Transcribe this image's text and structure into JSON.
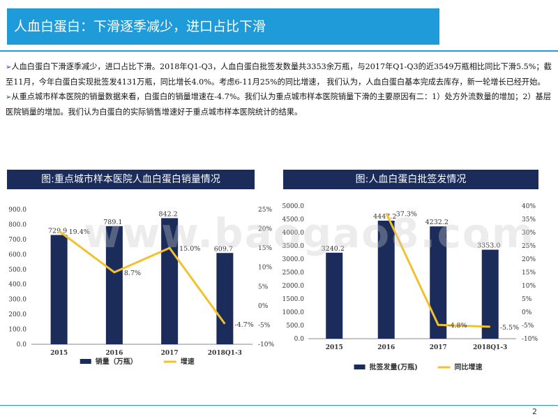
{
  "slide": {
    "title": "人血白蛋白：下滑逐季减少，进口占比下滑",
    "bullets": [
      "人血白蛋白下滑逐季减少，进口占比下滑。2018年Q1-Q3，人血白蛋白批签发数量共3353余万瓶，与2017年Q1-Q3的近3549万瓶相比同比下滑5.5%；截至11月，今年白蛋白实现批签发4131万瓶，同比增长4.0%。考虑6-11月25%的同比增速， 我们认为，人血白蛋白基本完成去库存，新一轮增长已经开始。",
      "从重点城市样本医院的销量数据来看，白蛋白的销量增速在-4.7%。我们认为重点城市样本医院销量下滑的主要原因有二：1）处方外流数量的增加；2）基层医院销量的增加。我们认为白蛋白的实际销售增速好于重点城市样本医院统计的结果。"
    ],
    "bullet_marker": "➢",
    "watermark": "www.baogao8.com",
    "page_number": "2"
  },
  "chart_data": [
    {
      "type": "bar",
      "title": "图:重点城市样本医院人血白蛋白销量情况",
      "categories": [
        "2015",
        "2016",
        "2017",
        "2018Q1-3"
      ],
      "series": [
        {
          "name": "销量（万瓶）",
          "type": "bar",
          "axis": "left",
          "values": [
            729.9,
            789.1,
            842.2,
            609.7
          ],
          "labels": [
            "729.9",
            "789.1",
            "842.2",
            "609.7"
          ],
          "color": "#1b2b5a"
        },
        {
          "name": "增速",
          "type": "line",
          "axis": "right",
          "values": [
            19.4,
            8.7,
            15.0,
            -4.7
          ],
          "labels": [
            "19.4%",
            "8.7%",
            "15.0%",
            "-4.7%"
          ],
          "color": "#f2c12e"
        }
      ],
      "ylim_left": [
        0,
        900
      ],
      "yticks_left": [
        "0.0",
        "100.0",
        "200.0",
        "300.0",
        "400.0",
        "500.0",
        "600.0",
        "700.0",
        "800.0",
        "900.0"
      ],
      "ylim_right": [
        -10,
        25
      ],
      "yticks_right": [
        "-10%",
        "-5%",
        "0%",
        "5%",
        "10%",
        "15%",
        "20%",
        "25%"
      ],
      "legend": "bottom"
    },
    {
      "type": "bar",
      "title": "图:人血白蛋白批签发情况",
      "categories": [
        "2015",
        "2016",
        "2017",
        "2018Q1-3"
      ],
      "series": [
        {
          "name": "批签发量(万瓶)",
          "type": "bar",
          "axis": "left",
          "values": [
            3240.2,
            4447.2,
            4232.2,
            3353.0
          ],
          "labels": [
            "3240.2",
            "4447.2",
            "4232.2",
            "3353.0"
          ],
          "color": "#1b2b5a"
        },
        {
          "name": "同比增速",
          "type": "line",
          "axis": "right",
          "values": [
            null,
            37.3,
            -4.8,
            -5.5
          ],
          "labels": [
            "",
            "37.3%",
            "-4.8%",
            "-5.5%"
          ],
          "color": "#f2c12e"
        }
      ],
      "ylim_left": [
        0,
        5000
      ],
      "yticks_left": [
        "0.0",
        "500.0",
        "1000.0",
        "1500.0",
        "2000.0",
        "2500.0",
        "3000.0",
        "3500.0",
        "4000.0",
        "4500.0",
        "5000.0"
      ],
      "ylim_right": [
        -10,
        40
      ],
      "yticks_right": [
        "-10%",
        "-5%",
        "0%",
        "5%",
        "10%",
        "15%",
        "20%",
        "25%",
        "30%",
        "35%",
        "40%"
      ],
      "legend": "bottom"
    }
  ]
}
